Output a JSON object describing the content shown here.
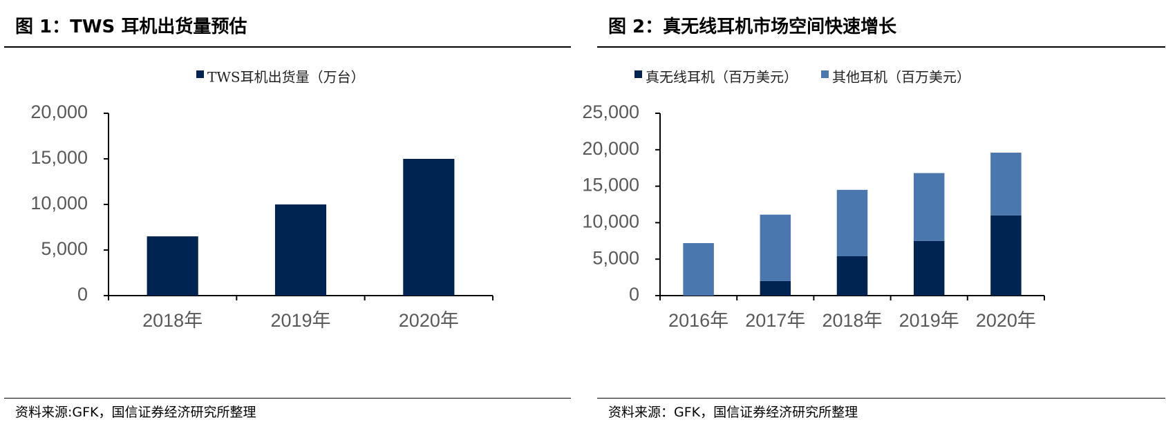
{
  "left": {
    "title": "图 1：TWS 耳机出货量预估",
    "source": "资料来源:GFK，国信证券经济研究所整理"
  },
  "right": {
    "title": "图 2：真无线耳机市场空间快速增长",
    "source": "资料来源：GFK，国信证券经济研究所整理"
  },
  "colors": {
    "dark_navy": "#002452",
    "steel_blue": "#4A77AE",
    "axis": "#000000",
    "tick_text": "#595959"
  },
  "chart_data": [
    {
      "type": "bar",
      "categories": [
        "2018年",
        "2019年",
        "2020年"
      ],
      "series": [
        {
          "name": "TWS耳机出货量（万台）",
          "values": [
            6500,
            10000,
            15000
          ],
          "color": "#002452"
        }
      ],
      "yticks": [
        "0",
        "5,000",
        "10,000",
        "15,000",
        "20,000"
      ],
      "ylim": [
        0,
        20000
      ],
      "legend": "top-center",
      "grid": false
    },
    {
      "type": "bar",
      "stacked": true,
      "categories": [
        "2016年",
        "2017年",
        "2018年",
        "2019年",
        "2020年"
      ],
      "series": [
        {
          "name": "真无线耳机（百万美元）",
          "values": [
            0,
            2000,
            5400,
            7500,
            11000
          ],
          "color": "#002452"
        },
        {
          "name": "其他耳机（百万美元）",
          "values": [
            7200,
            9100,
            9100,
            9300,
            8600
          ],
          "color": "#4A77AE"
        }
      ],
      "yticks": [
        "0",
        "5,000",
        "10,000",
        "15,000",
        "20,000",
        "25,000"
      ],
      "ylim": [
        0,
        25000
      ],
      "legend": "top-center",
      "grid": false
    }
  ]
}
